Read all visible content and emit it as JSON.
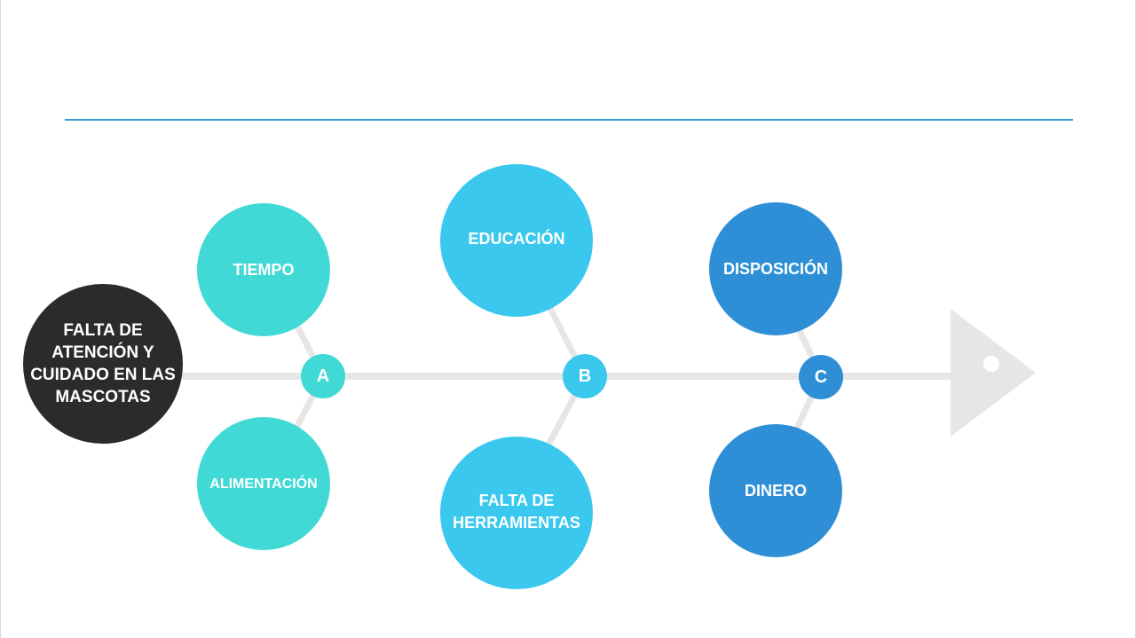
{
  "problem": {
    "label": "FALTA DE ATENCIÓN Y CUIDADO EN LAS MASCOTAS"
  },
  "groups": [
    {
      "node": "A",
      "top_cause": "TIEMPO",
      "bottom_cause": "ALIMENTACIÓN",
      "color": "#40d9d6"
    },
    {
      "node": "B",
      "top_cause": "EDUCACIÓN",
      "bottom_cause": "FALTA DE HERRAMIENTAS",
      "color": "#3ac8ee"
    },
    {
      "node": "C",
      "top_cause": "DISPOSICIÓN",
      "bottom_cause": "DINERO",
      "color": "#2e8fd6"
    }
  ],
  "colors": {
    "rule": "#3a9bd5",
    "spine": "#e6e6e6",
    "problem": "#2b2b2b"
  }
}
